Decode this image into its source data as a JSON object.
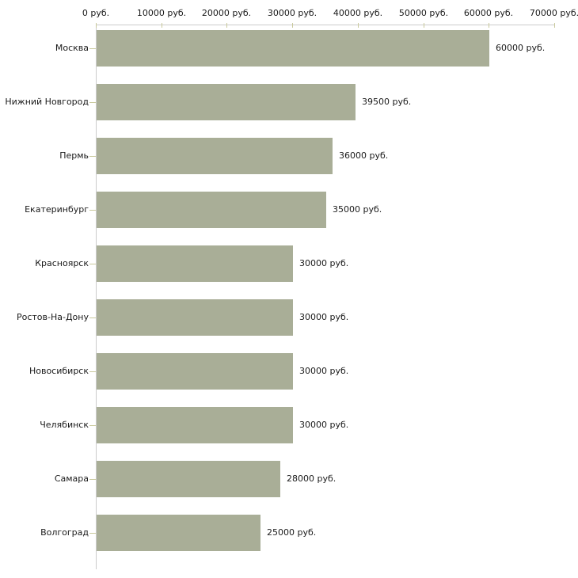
{
  "chart_data": {
    "type": "bar",
    "orientation": "horizontal",
    "title": "",
    "xlabel": "",
    "ylabel": "",
    "categories": [
      "Москва",
      "Нижний Новгород",
      "Пермь",
      "Екатеринбург",
      "Красноярск",
      "Ростов-На-Дону",
      "Новосибирск",
      "Челябинск",
      "Самара",
      "Волгоград"
    ],
    "values": [
      60000,
      39500,
      36000,
      35000,
      30000,
      30000,
      30000,
      30000,
      28000,
      25000
    ],
    "value_labels": [
      "60000 руб.",
      "39500 руб.",
      "36000 руб.",
      "35000 руб.",
      "30000 руб.",
      "30000 руб.",
      "30000 руб.",
      "30000 руб.",
      "28000 руб.",
      "25000 руб."
    ],
    "axis": {
      "position": "top",
      "min": 0,
      "max": 70000,
      "tick_step": 10000,
      "tick_labels": [
        "0 руб.",
        "10000 руб.",
        "20000 руб.",
        "30000 руб.",
        "40000 руб.",
        "50000 руб.",
        "60000 руб.",
        "70000 руб."
      ]
    },
    "grid": false,
    "legend": false,
    "colors": {
      "bar": "#a9ae97",
      "axis_line": "#cccccc",
      "tick": "#c9c99c",
      "text": "#1a1a1a",
      "background": "#ffffff"
    }
  }
}
